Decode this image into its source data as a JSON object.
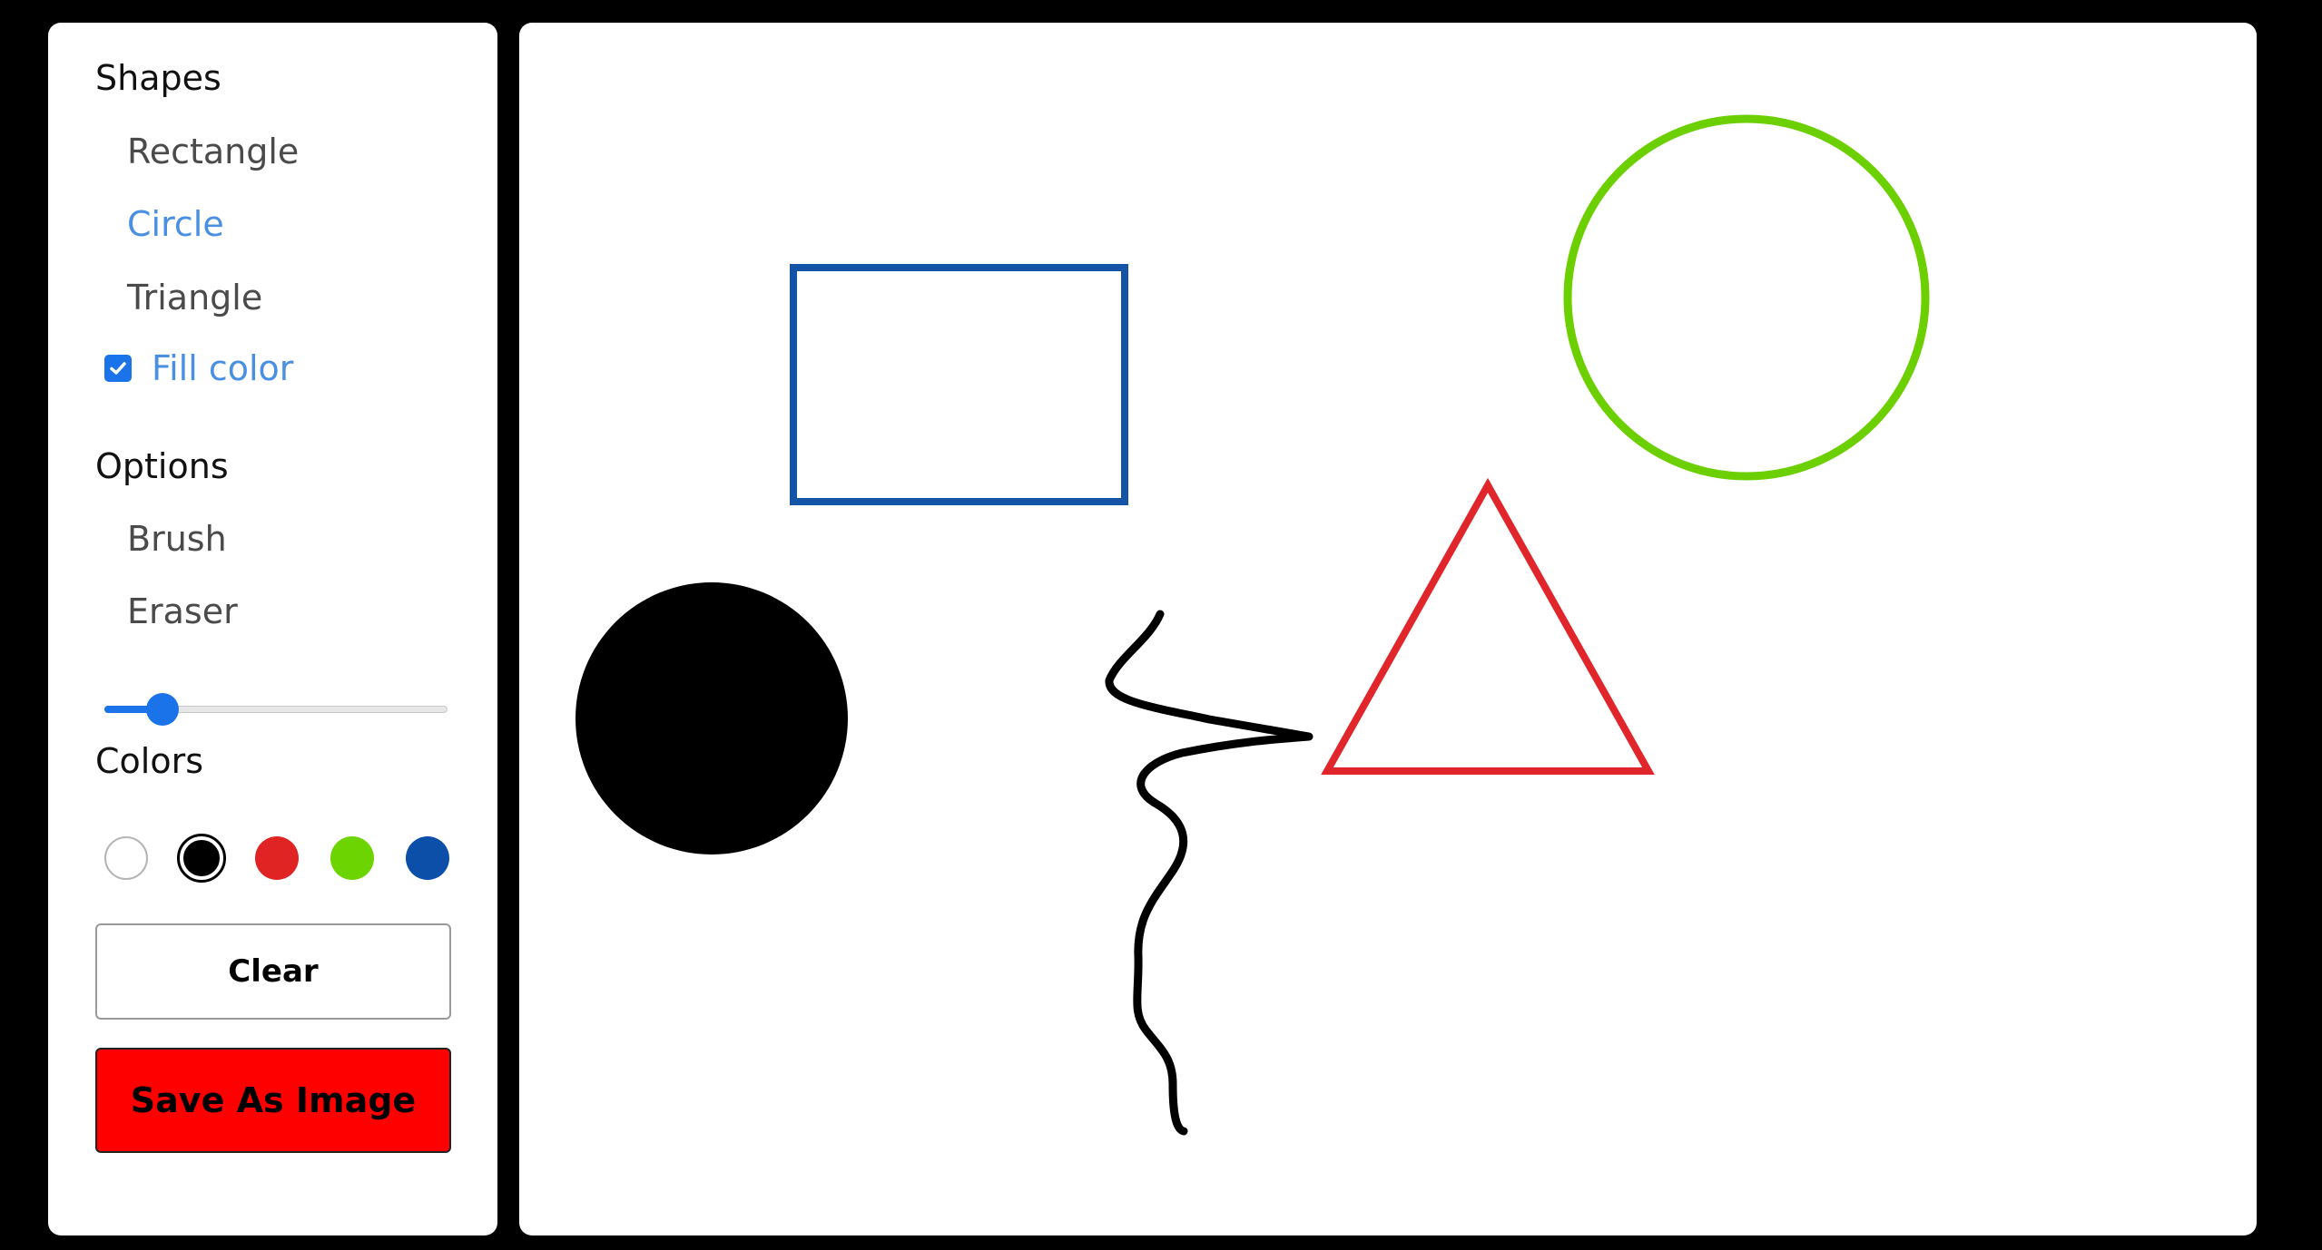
{
  "sidebar": {
    "shapes_title": "Shapes",
    "shapes": [
      {
        "label": "Rectangle",
        "active": false
      },
      {
        "label": "Circle",
        "active": true
      },
      {
        "label": "Triangle",
        "active": false
      }
    ],
    "fill_color": {
      "label": "Fill color",
      "checked": true
    },
    "options_title": "Options",
    "options": [
      {
        "label": "Brush"
      },
      {
        "label": "Eraser"
      }
    ],
    "brush_size_fraction": 0.17,
    "colors_title": "Colors",
    "colors": [
      {
        "name": "white",
        "hex": "#ffffff",
        "selected": false
      },
      {
        "name": "black",
        "hex": "#000000",
        "selected": true
      },
      {
        "name": "red",
        "hex": "#e02424",
        "selected": false
      },
      {
        "name": "green",
        "hex": "#6cd400",
        "selected": false
      },
      {
        "name": "blue",
        "hex": "#0b4fa8",
        "selected": false
      }
    ],
    "clear_label": "Clear",
    "save_label": "Save As Image"
  },
  "canvas": {
    "shapes": [
      {
        "kind": "rectangle",
        "stroke": "#1454a6",
        "filled": false
      },
      {
        "kind": "circle",
        "stroke": "#6cd000",
        "filled": false
      },
      {
        "kind": "triangle",
        "stroke": "#e0262b",
        "filled": false
      },
      {
        "kind": "circle",
        "fill": "#000000",
        "filled": true
      },
      {
        "kind": "brush-stroke",
        "stroke": "#000000"
      }
    ]
  },
  "theme": {
    "accent": "#4a90e2",
    "checkbox": "#1a73e8",
    "save_button": "#ff0000",
    "background": "#000000"
  }
}
